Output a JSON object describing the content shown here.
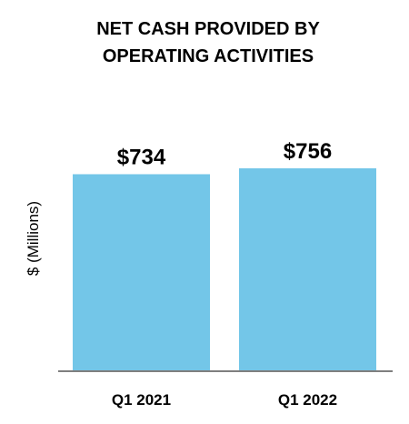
{
  "chart_data": {
    "type": "bar",
    "title": "NET CASH PROVIDED BY OPERATING ACTIVITIES",
    "title_lines": [
      "NET CASH PROVIDED BY",
      "OPERATING ACTIVITIES"
    ],
    "xlabel": "",
    "ylabel": "$ (Millions)",
    "categories": [
      "Q1 2021",
      "Q1 2022"
    ],
    "values": [
      734,
      756
    ],
    "value_labels": [
      "$734",
      "$756"
    ],
    "ylim": [
      0,
      1000
    ],
    "grid": false,
    "legend": "none",
    "bar_color": "#73C6E8",
    "axis_color": "#7F7F7F"
  }
}
